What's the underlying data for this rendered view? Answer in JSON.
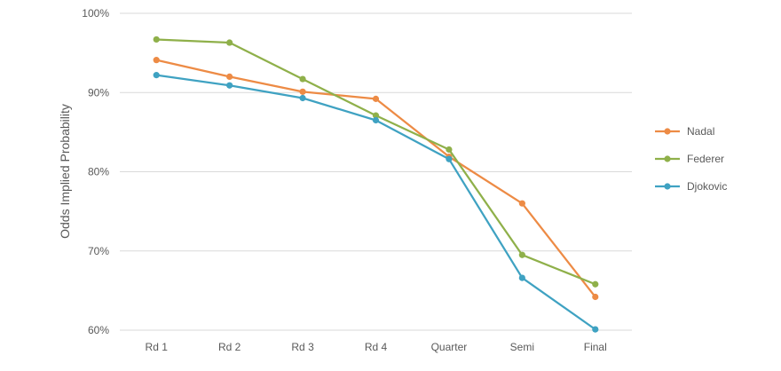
{
  "chart_data": {
    "type": "line",
    "title": "",
    "xlabel": "",
    "ylabel": "Odds Implied Probability",
    "categories": [
      "Rd 1",
      "Rd 2",
      "Rd 3",
      "Rd 4",
      "Quarter",
      "Semi",
      "Final"
    ],
    "ylim": [
      60,
      100
    ],
    "yticks": [
      "60%",
      "70%",
      "80%",
      "90%",
      "100%"
    ],
    "ytick_values": [
      60,
      70,
      80,
      90,
      100
    ],
    "grid": "horizontal",
    "legend_position": "right",
    "series": [
      {
        "name": "Nadal",
        "color": "#ED8B45",
        "values": [
          94.1,
          92.0,
          90.1,
          89.2,
          81.9,
          76.0,
          64.2
        ]
      },
      {
        "name": "Federer",
        "color": "#8FB04A",
        "values": [
          96.7,
          96.3,
          91.7,
          87.1,
          82.8,
          69.5,
          65.8
        ]
      },
      {
        "name": "Djokovic",
        "color": "#3FA2C2",
        "values": [
          92.2,
          90.9,
          89.3,
          86.5,
          81.6,
          66.6,
          60.1
        ]
      }
    ]
  }
}
